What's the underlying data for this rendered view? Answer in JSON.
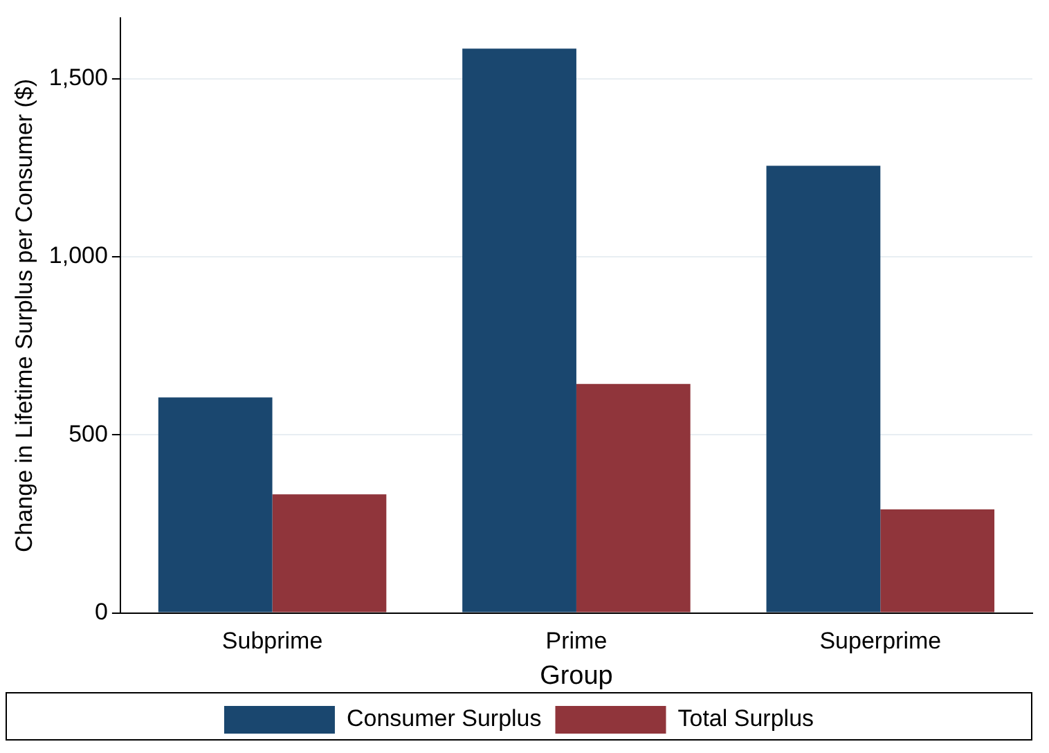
{
  "chart_data": {
    "type": "bar",
    "xlabel": "Group",
    "ylabel": "Change in Lifetime Surplus per Consumer ($)",
    "categories": [
      "Subprime",
      "Prime",
      "Superprime"
    ],
    "series": [
      {
        "name": "Consumer Surplus",
        "color": "#1a476f",
        "values": [
          605,
          1585,
          1256
        ]
      },
      {
        "name": "Total Surplus",
        "color": "#90353b",
        "values": [
          333,
          643,
          291
        ]
      }
    ],
    "ylim": [
      0,
      1670
    ],
    "yticks": [
      0,
      500,
      {
        "value": 1000,
        "label": "1,000"
      },
      {
        "value": 1500,
        "label": "1,500"
      }
    ],
    "grid": "y",
    "legend": "bottom"
  }
}
